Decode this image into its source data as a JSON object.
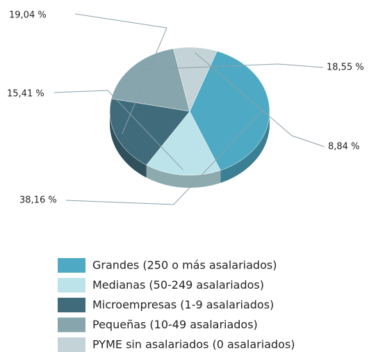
{
  "chart_data": {
    "type": "pie",
    "categories": [
      "Grandes (250 o más asalariados)",
      "Medianas (50-249 asalariados)",
      "Microempresas (1-9 asalariados)",
      "Pequeñas (10-49 asalariados)",
      "PYME sin asalariados (0 asalariados)"
    ],
    "values": [
      38.16,
      15.41,
      19.04,
      18.55,
      8.84
    ],
    "value_labels": [
      "38,16 %",
      "15,41 %",
      "19,04 %",
      "18,55 %",
      "8,84 %"
    ],
    "colors": [
      "#4eaac4",
      "#bde3ea",
      "#3f6b7b",
      "#86a5ad",
      "#c4d3d7"
    ],
    "legend": "bottom"
  }
}
